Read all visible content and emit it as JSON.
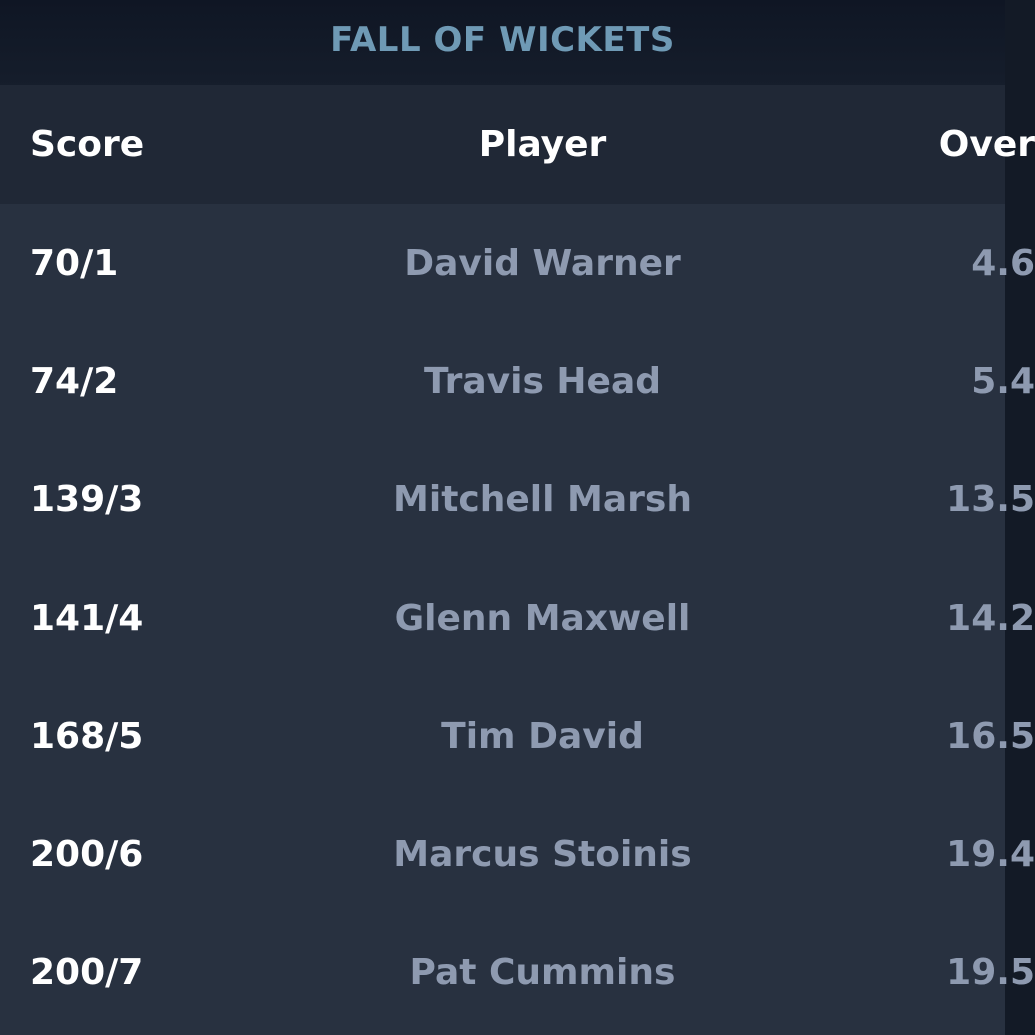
{
  "title": "FALL OF WICKETS",
  "table": {
    "headers": {
      "score": "Score",
      "player": "Player",
      "over": "Over"
    },
    "rows": [
      {
        "score": "70/1",
        "player": "David Warner",
        "over": "4.6"
      },
      {
        "score": "74/2",
        "player": "Travis Head",
        "over": "5.4"
      },
      {
        "score": "139/3",
        "player": "Mitchell Marsh",
        "over": "13.5"
      },
      {
        "score": "141/4",
        "player": "Glenn Maxwell",
        "over": "14.2"
      },
      {
        "score": "168/5",
        "player": "Tim David",
        "over": "16.5"
      },
      {
        "score": "200/6",
        "player": "Marcus Stoinis",
        "over": "19.4"
      },
      {
        "score": "200/7",
        "player": "Pat Cummins",
        "over": "19.5"
      }
    ]
  },
  "colors": {
    "title": "#6f9ab5",
    "header_bg": "#202836",
    "body_bg": "#283140",
    "score_text": "#ffffff",
    "muted_text": "#8e9ab0"
  }
}
